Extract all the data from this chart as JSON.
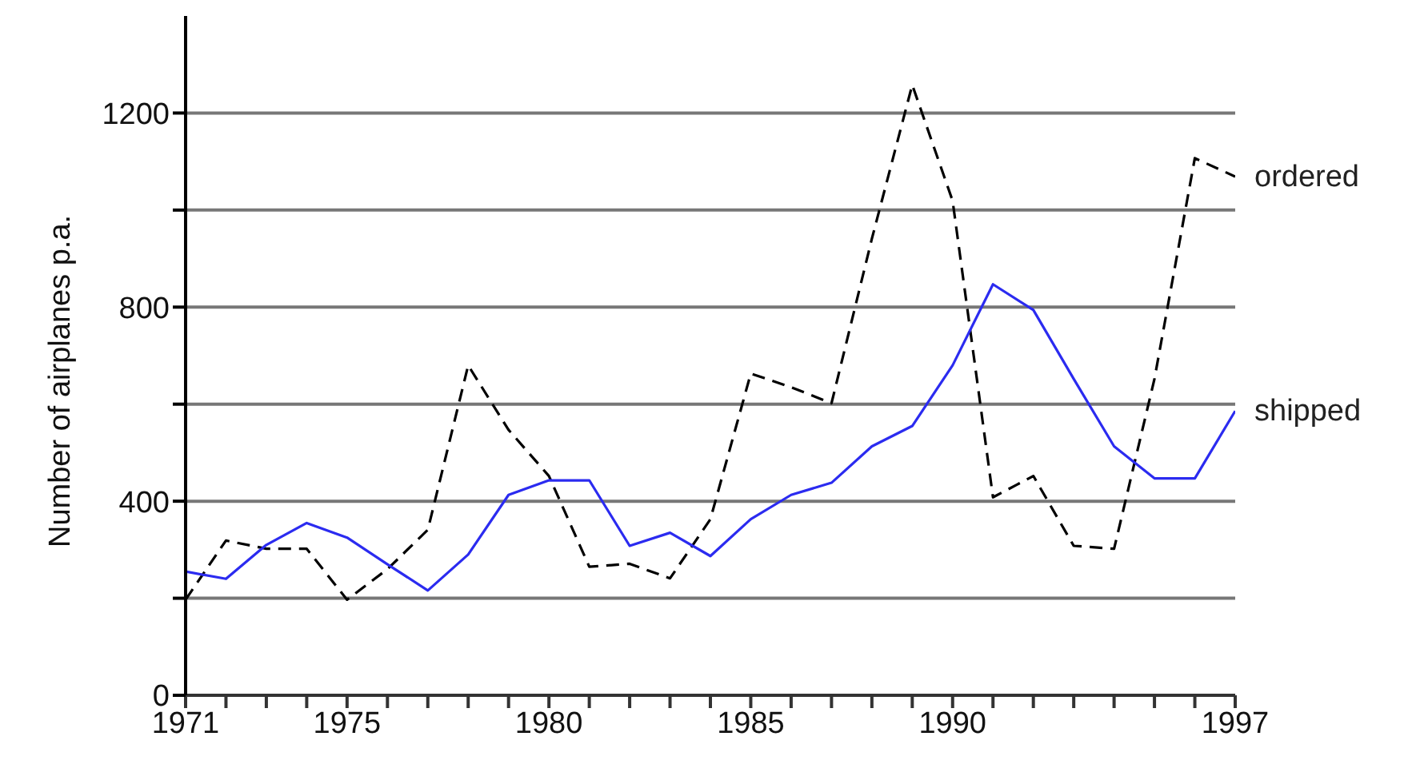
{
  "chart_data": {
    "type": "line",
    "ylabel": "Number of airplanes p.a.",
    "x": [
      1971,
      1972,
      1973,
      1974,
      1975,
      1976,
      1977,
      1978,
      1979,
      1980,
      1981,
      1982,
      1983,
      1984,
      1985,
      1986,
      1987,
      1988,
      1989,
      1990,
      1991,
      1992,
      1993,
      1994,
      1995,
      1996,
      1997
    ],
    "series": [
      {
        "name": "ordered",
        "color": "#000000",
        "line_style": "dashed",
        "values": [
          197,
          319,
          302,
          302,
          197,
          260,
          341,
          680,
          547,
          452,
          265,
          271,
          241,
          363,
          663,
          635,
          602,
          941,
          1258,
          1019,
          408,
          452,
          308,
          302,
          652,
          1107,
          1069
        ]
      },
      {
        "name": "shipped",
        "color": "#2b2bf0",
        "line_style": "solid",
        "values": [
          255,
          240,
          310,
          355,
          325,
          270,
          216,
          290,
          413,
          443,
          443,
          308,
          335,
          287,
          363,
          413,
          438,
          513,
          555,
          680,
          847,
          794,
          652,
          513,
          447,
          447,
          586
        ]
      }
    ],
    "xlim": [
      1971,
      1997
    ],
    "xticks": [
      1971,
      {
        "value": 1972,
        "label": null
      },
      {
        "value": 1973,
        "label": null
      },
      {
        "value": 1974,
        "label": null
      },
      1975,
      {
        "value": 1976,
        "label": null
      },
      {
        "value": 1977,
        "label": null
      },
      {
        "value": 1978,
        "label": null
      },
      {
        "value": 1979,
        "label": null
      },
      1980,
      {
        "value": 1981,
        "label": null
      },
      {
        "value": 1982,
        "label": null
      },
      {
        "value": 1983,
        "label": null
      },
      {
        "value": 1984,
        "label": null
      },
      1985,
      {
        "value": 1986,
        "label": null
      },
      {
        "value": 1987,
        "label": null
      },
      {
        "value": 1988,
        "label": null
      },
      {
        "value": 1989,
        "label": null
      },
      1990,
      {
        "value": 1991,
        "label": null
      },
      {
        "value": 1992,
        "label": null
      },
      {
        "value": 1993,
        "label": null
      },
      {
        "value": 1994,
        "label": null
      },
      {
        "value": 1995,
        "label": null
      },
      {
        "value": 1996,
        "label": null
      },
      1997
    ],
    "ylim": [
      0,
      1400
    ],
    "yticks": [
      0,
      {
        "value": 200,
        "label": null
      },
      400,
      {
        "value": 600,
        "label": null
      },
      800,
      {
        "value": 1000,
        "label": null
      },
      1200
    ],
    "grid": "y",
    "legend": false,
    "marker": "none"
  }
}
